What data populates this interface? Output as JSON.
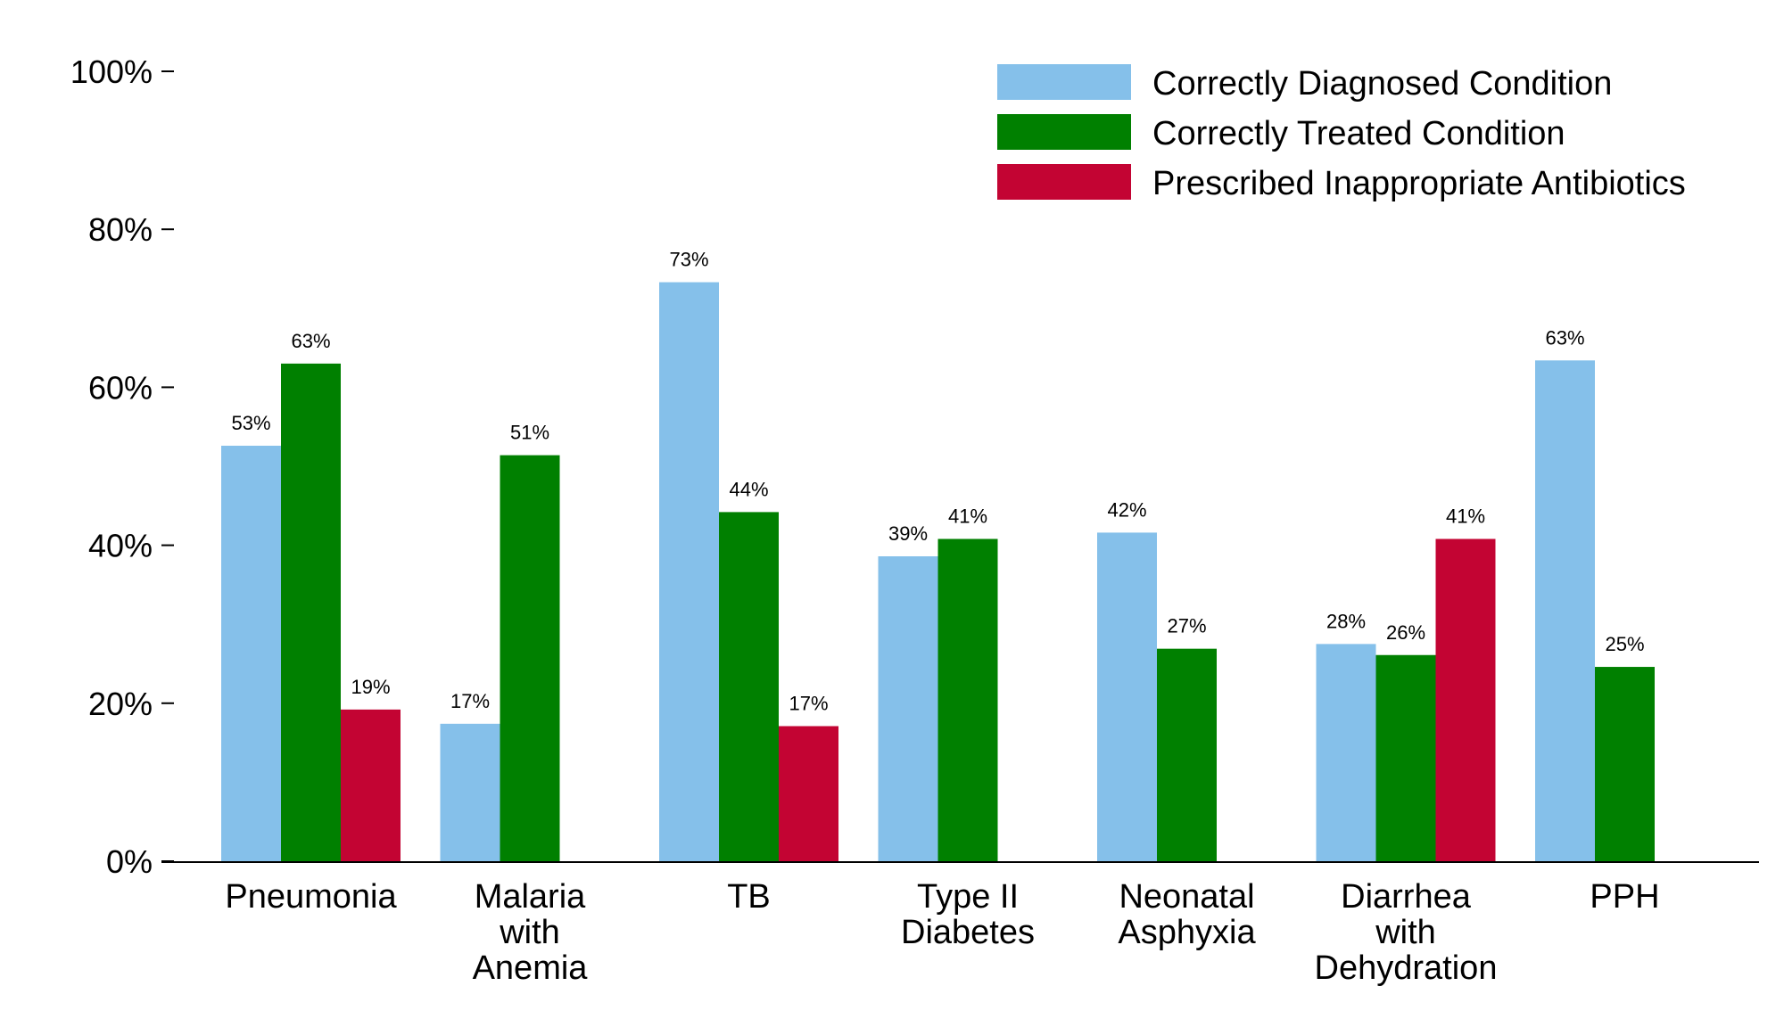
{
  "chart_data": {
    "type": "bar",
    "title": "",
    "xlabel": "",
    "ylabel": "",
    "ylim": [
      0,
      100
    ],
    "yticks": [
      0,
      20,
      40,
      60,
      80,
      100
    ],
    "ytick_labels": [
      "0%",
      "20%",
      "40%",
      "60%",
      "80%",
      "100%"
    ],
    "grid": false,
    "legend_position": "top-right",
    "categories": [
      [
        "Pneumonia"
      ],
      [
        "Malaria",
        "with",
        "Anemia"
      ],
      [
        "TB"
      ],
      [
        "Type II",
        "Diabetes"
      ],
      [
        "Neonatal",
        "Asphyxia"
      ],
      [
        "Diarrhea",
        "with",
        "Dehydration"
      ],
      [
        "PPH"
      ]
    ],
    "series": [
      {
        "name": "Correctly Diagnosed Condition",
        "color": "#85C0EA",
        "values": [
          52.6,
          17.4,
          73.3,
          38.6,
          41.6,
          27.5,
          63.4
        ],
        "labels": [
          "53%",
          "17%",
          "73%",
          "39%",
          "42%",
          "28%",
          "63%"
        ]
      },
      {
        "name": "Correctly Treated Condition",
        "color": "#008000",
        "values": [
          63.0,
          51.4,
          44.2,
          40.8,
          26.9,
          26.1,
          24.6
        ],
        "labels": [
          "63%",
          "51%",
          "44%",
          "41%",
          "27%",
          "26%",
          "25%"
        ]
      },
      {
        "name": "Prescribed Inappropriate Antibiotics",
        "color": "#C30433",
        "values": [
          19.2,
          null,
          17.1,
          null,
          null,
          40.8,
          null
        ],
        "labels": [
          "19%",
          null,
          "17%",
          null,
          null,
          "41%",
          null
        ]
      }
    ]
  }
}
